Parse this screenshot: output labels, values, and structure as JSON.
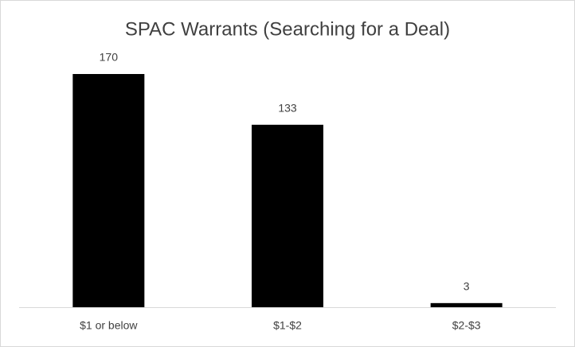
{
  "chart_data": {
    "type": "bar",
    "title": "SPAC Warrants (Searching for a Deal)",
    "categories": [
      "$1 or below",
      "$1-$2",
      "$2-$3"
    ],
    "values": [
      170,
      133,
      3
    ],
    "color": "#000000"
  }
}
